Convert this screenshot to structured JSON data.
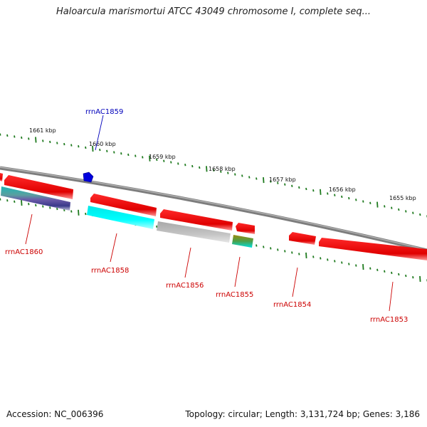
{
  "title": "Haloarcula marismortui ATCC 43049 chromosome I, complete seq...",
  "footer": {
    "accession": "Accession: NC_006396",
    "summary": "Topology: circular; Length: 3,131,724 bp; Genes: 3,186"
  },
  "colors": {
    "backbone": "#8c8c8c",
    "tick": "#1e7a1e",
    "gene_red": "#ee0000",
    "gene_cyan": "#00ffff",
    "gene_gray": "#b4b4b4",
    "gene_blue": "#0000dd",
    "label_red": "#cc0000",
    "label_blue": "#0000bb"
  },
  "scale": {
    "unit": "kbp",
    "ticks": [
      "1661 kbp",
      "1660 kbp",
      "1659 kbp",
      "1658 kbp",
      "1657 kbp",
      "1656 kbp",
      "1655 kbp"
    ]
  },
  "genes": [
    {
      "label": "rrnAC1859"
    },
    {
      "label": "rrnAC1860"
    },
    {
      "label": "rrnAC1858"
    },
    {
      "label": "rrnAC1856"
    },
    {
      "label": "rrnAC1855"
    },
    {
      "label": "rrnAC1854"
    },
    {
      "label": "rrnAC1853"
    }
  ]
}
